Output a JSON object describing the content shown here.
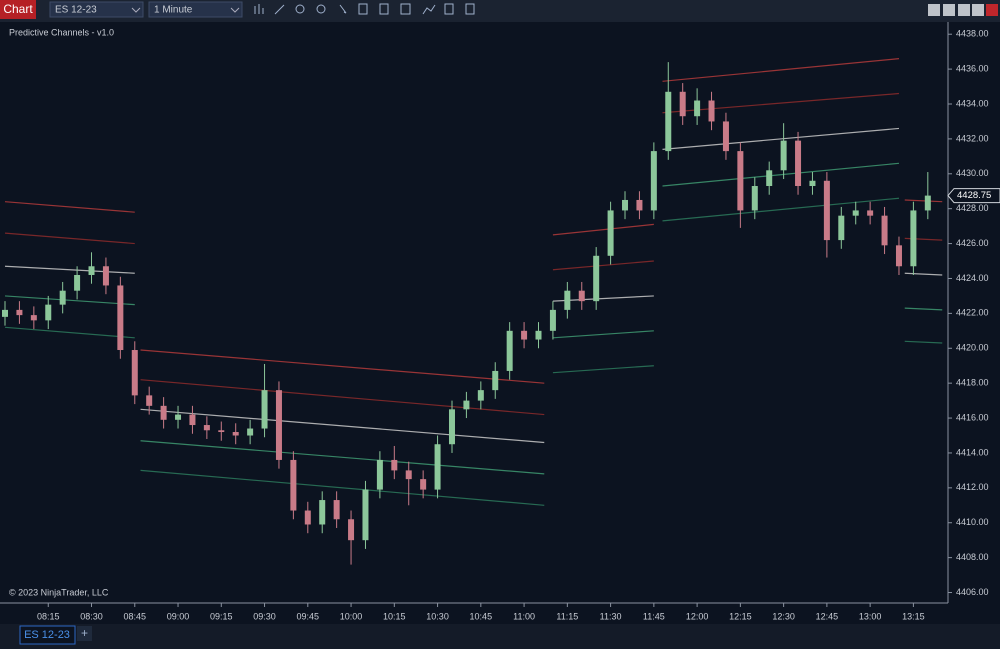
{
  "toolbar": {
    "title": "Chart",
    "instrument": "ES 12-23",
    "interval": "1 Minute"
  },
  "tabs": {
    "active": "ES 12-23",
    "add": "+"
  },
  "chart_data": {
    "type": "candlestick",
    "title": "Predictive Channels - v1.0",
    "copyright": "© 2023 NinjaTrader, LLC",
    "x": [
      "08:00",
      "08:05",
      "08:10",
      "08:15",
      "08:20",
      "08:25",
      "08:30",
      "08:35",
      "08:40",
      "08:45",
      "08:50",
      "08:55",
      "09:00",
      "09:05",
      "09:10",
      "09:15",
      "09:20",
      "09:25",
      "09:30",
      "09:35",
      "09:40",
      "09:45",
      "09:50",
      "09:55",
      "10:00",
      "10:05",
      "10:10",
      "10:15",
      "10:20",
      "10:25",
      "10:30",
      "10:35",
      "10:40",
      "10:45",
      "10:50",
      "10:55",
      "11:00",
      "11:05",
      "11:10",
      "11:15",
      "11:20",
      "11:25",
      "11:30",
      "11:35",
      "11:40",
      "11:45",
      "11:50",
      "11:55",
      "12:00",
      "12:05",
      "12:10",
      "12:15",
      "12:20",
      "12:25",
      "12:30",
      "12:35",
      "12:40",
      "12:45",
      "12:50",
      "12:55",
      "13:00",
      "13:05",
      "13:10",
      "13:15",
      "13:20"
    ],
    "open": [
      4421.8,
      4422.2,
      4421.9,
      4421.6,
      4422.5,
      4423.3,
      4424.2,
      4424.7,
      4423.6,
      4419.9,
      4417.3,
      4416.7,
      4415.9,
      4416.2,
      4415.6,
      4415.3,
      4415.2,
      4415.0,
      4415.4,
      4417.6,
      4413.6,
      4410.7,
      4409.9,
      4411.3,
      4410.2,
      4409.0,
      4411.9,
      4413.6,
      4413.0,
      4412.5,
      4411.9,
      4414.5,
      4416.5,
      4417.0,
      4417.6,
      4418.7,
      4421.0,
      4420.5,
      4421.0,
      4422.2,
      4423.3,
      4422.7,
      4425.3,
      4427.9,
      4428.5,
      4427.9,
      4431.3,
      4434.7,
      4433.3,
      4434.2,
      4433.0,
      4431.3,
      4427.9,
      4429.3,
      4430.2,
      4431.9,
      4429.3,
      4429.6,
      4426.2,
      4427.6,
      4427.9,
      4427.6,
      4425.9,
      4424.7,
      4427.9
    ],
    "high": [
      4422.7,
      4422.7,
      4422.4,
      4423.0,
      4423.8,
      4424.7,
      4425.5,
      4425.2,
      4424.1,
      4420.4,
      4417.8,
      4417.2,
      4416.7,
      4416.7,
      4416.1,
      4415.8,
      4415.7,
      4415.9,
      4419.1,
      4418.1,
      4414.1,
      4411.2,
      4411.8,
      4411.8,
      4410.7,
      4412.4,
      4414.1,
      4414.4,
      4413.5,
      4413.0,
      4415.0,
      4417.0,
      4417.5,
      4418.1,
      4419.2,
      4421.5,
      4421.5,
      4421.5,
      4422.7,
      4423.8,
      4423.8,
      4425.8,
      4428.4,
      4429.0,
      4429.0,
      4431.8,
      4436.4,
      4435.2,
      4434.9,
      4434.7,
      4433.5,
      4431.8,
      4429.8,
      4430.7,
      4432.9,
      4432.4,
      4430.1,
      4430.1,
      4428.1,
      4428.4,
      4428.4,
      4428.1,
      4426.4,
      4428.4,
      4430.1
    ],
    "low": [
      4421.3,
      4421.4,
      4421.1,
      4421.1,
      4422.0,
      4422.8,
      4423.7,
      4423.1,
      4419.4,
      4416.8,
      4416.2,
      4415.4,
      4415.4,
      4415.1,
      4414.8,
      4414.7,
      4414.5,
      4414.5,
      4414.9,
      4413.1,
      4410.2,
      4409.4,
      4409.4,
      4409.7,
      4407.6,
      4408.5,
      4411.4,
      4412.5,
      4411.0,
      4411.4,
      4411.4,
      4414.0,
      4416.0,
      4416.5,
      4417.1,
      4418.2,
      4420.0,
      4420.0,
      4420.5,
      4421.7,
      4422.2,
      4422.2,
      4424.8,
      4427.4,
      4427.4,
      4427.4,
      4430.8,
      4432.8,
      4432.8,
      4432.5,
      4430.8,
      4426.9,
      4427.4,
      4428.8,
      4429.7,
      4428.8,
      4428.8,
      4425.2,
      4425.7,
      4427.1,
      4427.1,
      4425.4,
      4424.2,
      4424.2,
      4427.4
    ],
    "close": [
      4422.2,
      4421.9,
      4421.6,
      4422.5,
      4423.3,
      4424.2,
      4424.7,
      4423.6,
      4419.9,
      4417.3,
      4416.7,
      4415.9,
      4416.2,
      4415.6,
      4415.3,
      4415.2,
      4415.0,
      4415.4,
      4417.6,
      4413.6,
      4410.7,
      4409.9,
      4411.3,
      4410.2,
      4409.0,
      4411.9,
      4413.6,
      4413.0,
      4412.5,
      4411.9,
      4414.5,
      4416.5,
      4417.0,
      4417.6,
      4418.7,
      4421.0,
      4420.5,
      4421.0,
      4422.2,
      4423.3,
      4422.7,
      4425.3,
      4427.9,
      4428.5,
      4427.9,
      4431.3,
      4434.7,
      4433.3,
      4434.2,
      4433.0,
      4431.3,
      4427.9,
      4429.3,
      4430.2,
      4431.9,
      4429.3,
      4429.6,
      4426.2,
      4427.6,
      4427.9,
      4427.6,
      4425.9,
      4424.7,
      4427.9,
      4428.75
    ],
    "up_color": "#8cc79a",
    "down_color": "#c97b88",
    "channel_colors": [
      "#b23a3a",
      "#8c2b2b",
      "#c9c9c9",
      "#3f9a72",
      "#2c7a5c"
    ],
    "channels": [
      {
        "x": [
          "08:00",
          "08:45"
        ],
        "lines": [
          [
            4428.4,
            4427.8
          ],
          [
            4426.6,
            4426.0
          ],
          [
            4424.7,
            4424.3
          ],
          [
            4423.0,
            4422.5
          ],
          [
            4421.2,
            4420.6
          ]
        ]
      },
      {
        "x": [
          "08:47",
          "11:07"
        ],
        "lines": [
          [
            4419.9,
            4418.0
          ],
          [
            4418.2,
            4416.2
          ],
          [
            4416.5,
            4414.6
          ],
          [
            4414.7,
            4412.8
          ],
          [
            4413.0,
            4411.0
          ]
        ]
      },
      {
        "x": [
          "11:10",
          "11:45"
        ],
        "lines": [
          [
            4426.5,
            4427.1
          ],
          [
            4424.5,
            4425.0
          ],
          [
            4422.7,
            4423.0
          ],
          [
            4420.6,
            4421.0
          ],
          [
            4418.6,
            4419.0
          ]
        ]
      },
      {
        "x": [
          "11:48",
          "13:10"
        ],
        "lines": [
          [
            4435.3,
            4436.6
          ],
          [
            4433.5,
            4434.6
          ],
          [
            4431.4,
            4432.6
          ],
          [
            4429.3,
            4430.6
          ],
          [
            4427.3,
            4428.6
          ]
        ]
      },
      {
        "x": [
          "13:12",
          "13:25"
        ],
        "lines": [
          [
            4428.5,
            4428.4
          ],
          [
            4426.3,
            4426.2
          ],
          [
            4424.3,
            4424.2
          ],
          [
            4422.3,
            4422.2
          ],
          [
            4420.4,
            4420.3
          ]
        ]
      }
    ],
    "last_price": 4428.75,
    "xlim": [
      "08:00",
      "13:27"
    ],
    "xticks": [
      "08:15",
      "08:30",
      "08:45",
      "09:00",
      "09:15",
      "09:30",
      "09:45",
      "10:00",
      "10:15",
      "10:30",
      "10:45",
      "11:00",
      "11:15",
      "11:30",
      "11:45",
      "12:00",
      "12:15",
      "12:30",
      "12:45",
      "13:00",
      "13:15"
    ],
    "ylim": [
      4405.4,
      4438.7
    ],
    "yticks": [
      {
        "value": 4406,
        "label": "4406.00"
      },
      {
        "value": 4408,
        "label": "4408.00"
      },
      {
        "value": 4410,
        "label": "4410.00"
      },
      {
        "value": 4412,
        "label": "4412.00"
      },
      {
        "value": 4414,
        "label": "4414.00"
      },
      {
        "value": 4416,
        "label": "4416.00"
      },
      {
        "value": 4418,
        "label": "4418.00"
      },
      {
        "value": 4420,
        "label": "4420.00"
      },
      {
        "value": 4422,
        "label": "4422.00"
      },
      {
        "value": 4424,
        "label": "4424.00"
      },
      {
        "value": 4426,
        "label": "4426.00"
      },
      {
        "value": 4428,
        "label": "4428.00"
      },
      {
        "value": 4430,
        "label": "4430.00"
      },
      {
        "value": 4432,
        "label": "4432.00"
      },
      {
        "value": 4434,
        "label": "4434.00"
      },
      {
        "value": 4436,
        "label": "4436.00"
      },
      {
        "value": 4438,
        "label": "4438.00"
      }
    ]
  }
}
